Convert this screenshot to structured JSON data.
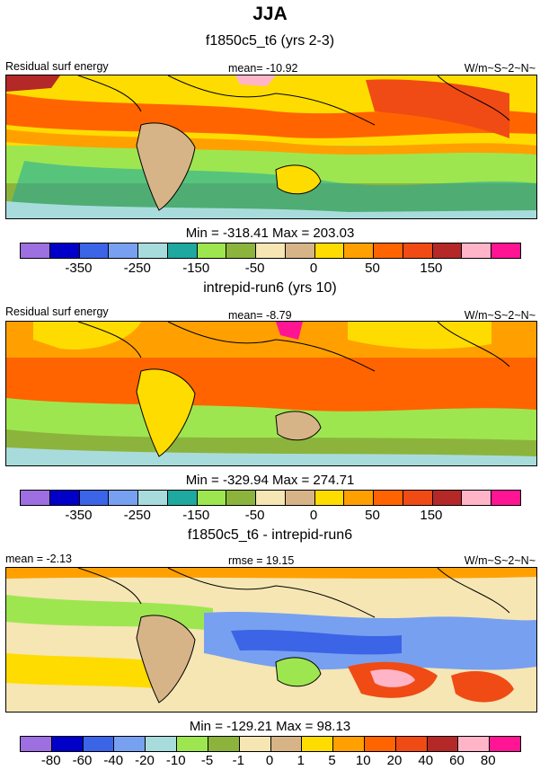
{
  "header": {
    "season": "JJA"
  },
  "colorbar_colors": [
    "#9d6fe0",
    "#0000c8",
    "#3c64e6",
    "#78a0f0",
    "#a8dcdc",
    "#1ea8a0",
    "#9ee650",
    "#8cb43c",
    "#f5e6b4",
    "#d7b487",
    "#ffdc00",
    "#ffa000",
    "#ff6400",
    "#f04b14",
    "#b42828",
    "#ffb4c8",
    "#ff1493"
  ],
  "chart_data": [
    {
      "type": "heatmap",
      "title": "f1850c5_t6 (yrs 2-3)",
      "left_label": "Residual surf energy",
      "center_label": "mean= -10.92",
      "right_label": "W/m~S~2~N~",
      "stats": "Min = -318.41 Max = 203.03",
      "colorbar_ticks": [
        "-350",
        "-250",
        "-150",
        "-50",
        "0",
        "50",
        "150"
      ],
      "tick_after_box": [
        2,
        4,
        6,
        8,
        10,
        12,
        14
      ]
    },
    {
      "type": "heatmap",
      "title": "intrepid-run6 (yrs 10)",
      "left_label": "Residual surf energy",
      "center_label": "mean=  -8.79",
      "right_label": "W/m~S~2~N~",
      "stats": "Min = -329.94 Max = 274.71",
      "colorbar_ticks": [
        "-350",
        "-250",
        "-150",
        "-50",
        "0",
        "50",
        "150"
      ],
      "tick_after_box": [
        2,
        4,
        6,
        8,
        10,
        12,
        14
      ]
    },
    {
      "type": "heatmap",
      "title": "f1850c5_t6 - intrepid-run6",
      "left_label": "mean =  -2.13",
      "center_label": "rmse =  19.15",
      "right_label": "W/m~S~2~N~",
      "stats": "Min = -129.21 Max =  98.13",
      "colorbar_ticks": [
        "-80",
        "-60",
        "-40",
        "-20",
        "-10",
        "-5",
        "-1",
        "0",
        "1",
        "5",
        "10",
        "20",
        "40",
        "60",
        "80"
      ],
      "tick_after_box": [
        1,
        2,
        3,
        4,
        5,
        6,
        7,
        8,
        9,
        10,
        11,
        12,
        13,
        14,
        15
      ]
    }
  ]
}
